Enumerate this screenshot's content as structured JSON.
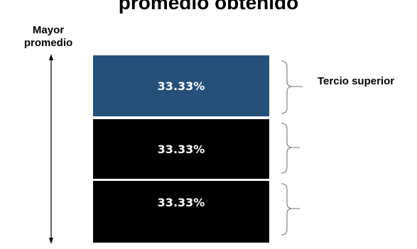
{
  "title": "promedio obtenido",
  "axis": {
    "label_line1": "Mayor",
    "label_line2": "promedio"
  },
  "blocks": [
    {
      "value": "33.33%",
      "color": "#24507a"
    },
    {
      "value": "33.33%",
      "color": "#000000"
    },
    {
      "value": "33.33%",
      "color": "#000000"
    }
  ],
  "brackets": [
    {
      "label": "Tercio superior"
    },
    {
      "label": ""
    },
    {
      "label": ""
    }
  ]
}
